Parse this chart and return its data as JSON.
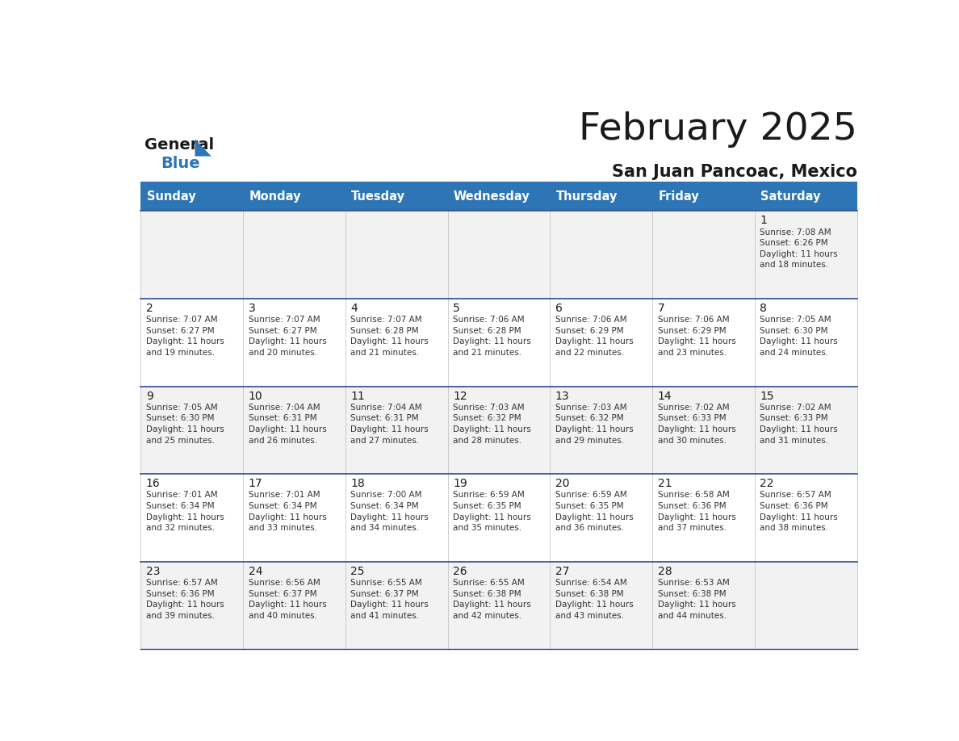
{
  "title": "February 2025",
  "subtitle": "San Juan Pancoac, Mexico",
  "header_bg": "#2E75B6",
  "header_text_color": "#FFFFFF",
  "days_of_week": [
    "Sunday",
    "Monday",
    "Tuesday",
    "Wednesday",
    "Thursday",
    "Friday",
    "Saturday"
  ],
  "background_color": "#FFFFFF",
  "row_bg_even": "#F2F2F2",
  "row_bg_odd": "#FFFFFF",
  "border_color": "#2E4B8F",
  "text_color": "#333333",
  "calendar": [
    [
      null,
      null,
      null,
      null,
      null,
      null,
      {
        "day": "1",
        "sunrise": "7:08 AM",
        "sunset": "6:26 PM",
        "daylight": "11 hours\nand 18 minutes."
      }
    ],
    [
      {
        "day": "2",
        "sunrise": "7:07 AM",
        "sunset": "6:27 PM",
        "daylight": "11 hours\nand 19 minutes."
      },
      {
        "day": "3",
        "sunrise": "7:07 AM",
        "sunset": "6:27 PM",
        "daylight": "11 hours\nand 20 minutes."
      },
      {
        "day": "4",
        "sunrise": "7:07 AM",
        "sunset": "6:28 PM",
        "daylight": "11 hours\nand 21 minutes."
      },
      {
        "day": "5",
        "sunrise": "7:06 AM",
        "sunset": "6:28 PM",
        "daylight": "11 hours\nand 21 minutes."
      },
      {
        "day": "6",
        "sunrise": "7:06 AM",
        "sunset": "6:29 PM",
        "daylight": "11 hours\nand 22 minutes."
      },
      {
        "day": "7",
        "sunrise": "7:06 AM",
        "sunset": "6:29 PM",
        "daylight": "11 hours\nand 23 minutes."
      },
      {
        "day": "8",
        "sunrise": "7:05 AM",
        "sunset": "6:30 PM",
        "daylight": "11 hours\nand 24 minutes."
      }
    ],
    [
      {
        "day": "9",
        "sunrise": "7:05 AM",
        "sunset": "6:30 PM",
        "daylight": "11 hours\nand 25 minutes."
      },
      {
        "day": "10",
        "sunrise": "7:04 AM",
        "sunset": "6:31 PM",
        "daylight": "11 hours\nand 26 minutes."
      },
      {
        "day": "11",
        "sunrise": "7:04 AM",
        "sunset": "6:31 PM",
        "daylight": "11 hours\nand 27 minutes."
      },
      {
        "day": "12",
        "sunrise": "7:03 AM",
        "sunset": "6:32 PM",
        "daylight": "11 hours\nand 28 minutes."
      },
      {
        "day": "13",
        "sunrise": "7:03 AM",
        "sunset": "6:32 PM",
        "daylight": "11 hours\nand 29 minutes."
      },
      {
        "day": "14",
        "sunrise": "7:02 AM",
        "sunset": "6:33 PM",
        "daylight": "11 hours\nand 30 minutes."
      },
      {
        "day": "15",
        "sunrise": "7:02 AM",
        "sunset": "6:33 PM",
        "daylight": "11 hours\nand 31 minutes."
      }
    ],
    [
      {
        "day": "16",
        "sunrise": "7:01 AM",
        "sunset": "6:34 PM",
        "daylight": "11 hours\nand 32 minutes."
      },
      {
        "day": "17",
        "sunrise": "7:01 AM",
        "sunset": "6:34 PM",
        "daylight": "11 hours\nand 33 minutes."
      },
      {
        "day": "18",
        "sunrise": "7:00 AM",
        "sunset": "6:34 PM",
        "daylight": "11 hours\nand 34 minutes."
      },
      {
        "day": "19",
        "sunrise": "6:59 AM",
        "sunset": "6:35 PM",
        "daylight": "11 hours\nand 35 minutes."
      },
      {
        "day": "20",
        "sunrise": "6:59 AM",
        "sunset": "6:35 PM",
        "daylight": "11 hours\nand 36 minutes."
      },
      {
        "day": "21",
        "sunrise": "6:58 AM",
        "sunset": "6:36 PM",
        "daylight": "11 hours\nand 37 minutes."
      },
      {
        "day": "22",
        "sunrise": "6:57 AM",
        "sunset": "6:36 PM",
        "daylight": "11 hours\nand 38 minutes."
      }
    ],
    [
      {
        "day": "23",
        "sunrise": "6:57 AM",
        "sunset": "6:36 PM",
        "daylight": "11 hours\nand 39 minutes."
      },
      {
        "day": "24",
        "sunrise": "6:56 AM",
        "sunset": "6:37 PM",
        "daylight": "11 hours\nand 40 minutes."
      },
      {
        "day": "25",
        "sunrise": "6:55 AM",
        "sunset": "6:37 PM",
        "daylight": "11 hours\nand 41 minutes."
      },
      {
        "day": "26",
        "sunrise": "6:55 AM",
        "sunset": "6:38 PM",
        "daylight": "11 hours\nand 42 minutes."
      },
      {
        "day": "27",
        "sunrise": "6:54 AM",
        "sunset": "6:38 PM",
        "daylight": "11 hours\nand 43 minutes."
      },
      {
        "day": "28",
        "sunrise": "6:53 AM",
        "sunset": "6:38 PM",
        "daylight": "11 hours\nand 44 minutes."
      },
      null
    ]
  ]
}
